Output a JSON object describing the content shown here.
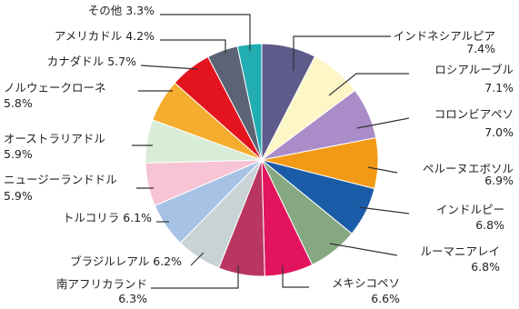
{
  "chart_data": {
    "type": "pie",
    "title": "",
    "slices": [
      {
        "label": "インドネシアルピア",
        "value": 7.4,
        "value_label": "7.4%",
        "color": "#5e5a8a"
      },
      {
        "label": "ロシアルーブル",
        "value": 7.1,
        "value_label": "7.1%",
        "color": "#fdf6c6"
      },
      {
        "label": "コロンビアペソ",
        "value": 7.0,
        "value_label": "7.0%",
        "color": "#a98cc8"
      },
      {
        "label": "ペルーヌエボソル",
        "value": 6.9,
        "value_label": "6.9%",
        "color": "#f29a16"
      },
      {
        "label": "インドルピー",
        "value": 6.8,
        "value_label": "6.8%",
        "color": "#1a5ca8"
      },
      {
        "label": "ルーマニアレイ",
        "value": 6.8,
        "value_label": "6.8%",
        "color": "#86a880"
      },
      {
        "label": "メキシコペソ",
        "value": 6.6,
        "value_label": "6.6%",
        "color": "#e3145e"
      },
      {
        "label": "南アフリカランド",
        "value": 6.3,
        "value_label": "6.3%",
        "color": "#b8365f"
      },
      {
        "label": "ブラジルレアル",
        "value": 6.2,
        "value_label": "6.2%",
        "color": "#c9d2d4"
      },
      {
        "label": "トルコリラ",
        "value": 6.1,
        "value_label": "6.1%",
        "color": "#a8c2e6"
      },
      {
        "label": "ニュージーランドドル",
        "value": 5.9,
        "value_label": "5.9%",
        "color": "#f6c4d4"
      },
      {
        "label": "オーストラリアドル",
        "value": 5.9,
        "value_label": "5.9%",
        "color": "#d9ecd7"
      },
      {
        "label": "ノルウェークローネ",
        "value": 5.8,
        "value_label": "5.8%",
        "color": "#f4ad2e"
      },
      {
        "label": "カナダドル",
        "value": 5.7,
        "value_label": "5.7%",
        "color": "#e3141e"
      },
      {
        "label": "アメリカドル",
        "value": 4.2,
        "value_label": "4.2%",
        "color": "#5b6375"
      },
      {
        "label": "その他",
        "value": 3.3,
        "value_label": "3.3%",
        "color": "#22adb2"
      }
    ],
    "legend": "none"
  }
}
